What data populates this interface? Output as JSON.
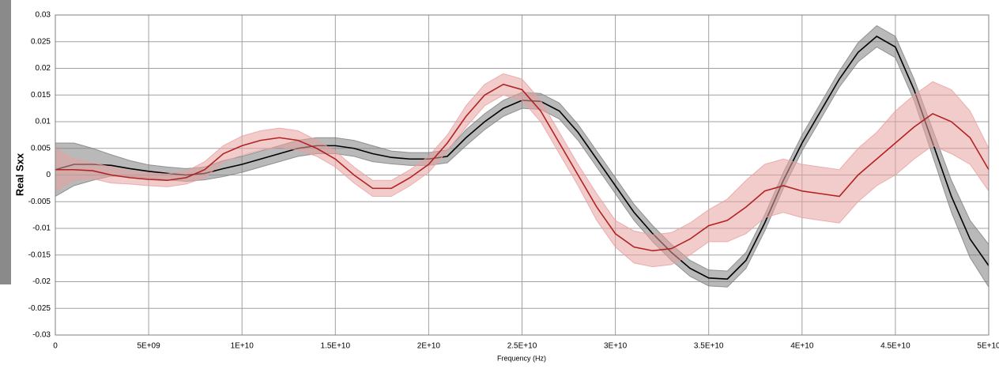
{
  "chart_data": {
    "type": "line",
    "x_label": "Frequency (Hz)",
    "y_label": "Real Sxx",
    "x": [
      0,
      1000000000.0,
      2000000000.0,
      3000000000.0,
      4000000000.0,
      5000000000.0,
      6000000000.0,
      7000000000.0,
      8000000000.0,
      9000000000.0,
      10000000000.0,
      11000000000.0,
      12000000000.0,
      13000000000.0,
      14000000000.0,
      15000000000.0,
      16000000000.0,
      17000000000.0,
      18000000000.0,
      19000000000.0,
      20000000000.0,
      21000000000.0,
      22000000000.0,
      23000000000.0,
      24000000000.0,
      25000000000.0,
      26000000000.0,
      27000000000.0,
      28000000000.0,
      29000000000.0,
      30000000000.0,
      31000000000.0,
      32000000000.0,
      33000000000.0,
      34000000000.0,
      35000000000.0,
      36000000000.0,
      37000000000.0,
      38000000000.0,
      39000000000.0,
      40000000000.0,
      41000000000.0,
      42000000000.0,
      43000000000.0,
      44000000000.0,
      45000000000.0,
      46000000000.0,
      47000000000.0,
      48000000000.0,
      49000000000.0,
      50000000000.0
    ],
    "series": [
      {
        "color": "#000000",
        "band_color": "#808080",
        "values": [
          0.001,
          0.002,
          0.002,
          0.0018,
          0.0012,
          0.0007,
          0.0003,
          0.0,
          0.0003,
          0.0012,
          0.002,
          0.003,
          0.004,
          0.005,
          0.0055,
          0.0055,
          0.005,
          0.004,
          0.0033,
          0.003,
          0.003,
          0.0035,
          0.007,
          0.01,
          0.0125,
          0.014,
          0.0138,
          0.012,
          0.008,
          0.003,
          -0.002,
          -0.007,
          -0.011,
          -0.0145,
          -0.0175,
          -0.0193,
          -0.0195,
          -0.016,
          -0.009,
          -0.001,
          0.006,
          0.012,
          0.018,
          0.023,
          0.026,
          0.024,
          0.016,
          0.006,
          -0.004,
          -0.012,
          -0.017
        ],
        "error": [
          0.005,
          0.004,
          0.003,
          0.002,
          0.0015,
          0.0012,
          0.0012,
          0.0012,
          0.0012,
          0.0015,
          0.0015,
          0.0015,
          0.0015,
          0.0015,
          0.0015,
          0.0015,
          0.0015,
          0.0015,
          0.0012,
          0.0012,
          0.0012,
          0.0012,
          0.0015,
          0.0015,
          0.0015,
          0.0015,
          0.0015,
          0.0015,
          0.0015,
          0.0015,
          0.0015,
          0.0015,
          0.0015,
          0.0015,
          0.0015,
          0.0015,
          0.0015,
          0.0015,
          0.0015,
          0.0015,
          0.0015,
          0.0015,
          0.0015,
          0.0018,
          0.002,
          0.002,
          0.002,
          0.0025,
          0.003,
          0.0035,
          0.004
        ]
      },
      {
        "color": "#b22222",
        "band_color": "#e8a0a0",
        "values": [
          0.001,
          0.001,
          0.0008,
          0.0,
          -0.0005,
          -0.0008,
          -0.001,
          -0.0005,
          0.001,
          0.004,
          0.0055,
          0.0065,
          0.007,
          0.0065,
          0.005,
          0.003,
          0.0,
          -0.0025,
          -0.0025,
          -0.0005,
          0.002,
          0.006,
          0.011,
          0.015,
          0.017,
          0.016,
          0.012,
          0.006,
          0.0,
          -0.006,
          -0.011,
          -0.0135,
          -0.0142,
          -0.0138,
          -0.012,
          -0.0095,
          -0.0085,
          -0.006,
          -0.003,
          -0.002,
          -0.003,
          -0.0035,
          -0.004,
          0.0,
          0.003,
          0.006,
          0.009,
          0.0115,
          0.01,
          0.007,
          0.001
        ],
        "error": [
          0.004,
          0.002,
          0.0015,
          0.0015,
          0.0012,
          0.0012,
          0.0012,
          0.0012,
          0.0015,
          0.0015,
          0.0018,
          0.0018,
          0.0018,
          0.0018,
          0.0015,
          0.0015,
          0.0015,
          0.0015,
          0.0015,
          0.0015,
          0.0015,
          0.0015,
          0.002,
          0.002,
          0.002,
          0.002,
          0.002,
          0.002,
          0.002,
          0.0025,
          0.0025,
          0.003,
          0.003,
          0.003,
          0.003,
          0.003,
          0.004,
          0.005,
          0.005,
          0.005,
          0.005,
          0.005,
          0.005,
          0.005,
          0.005,
          0.006,
          0.006,
          0.006,
          0.006,
          0.005,
          0.004
        ]
      }
    ],
    "xlim": [
      0,
      50000000000.0
    ],
    "xticks": [
      0,
      {
        "value": 5000000000.0,
        "label": "5E+09"
      },
      {
        "value": 10000000000.0,
        "label": "1E+10"
      },
      {
        "value": 15000000000.0,
        "label": "1.5E+10"
      },
      {
        "value": 20000000000.0,
        "label": "2E+10"
      },
      {
        "value": 25000000000.0,
        "label": "2.5E+10"
      },
      {
        "value": 30000000000.0,
        "label": "3E+10"
      },
      {
        "value": 35000000000.0,
        "label": "3.5E+10"
      },
      {
        "value": 40000000000.0,
        "label": "4E+10"
      },
      {
        "value": 45000000000.0,
        "label": "4.5E+10"
      },
      {
        "value": 50000000000.0,
        "label": "5E+10"
      }
    ],
    "ylim": [
      -0.03,
      0.03
    ],
    "yticks": [
      -0.03,
      -0.025,
      -0.02,
      -0.015,
      -0.01,
      -0.005,
      0,
      0.005,
      0.01,
      0.015,
      0.02,
      0.025,
      0.03
    ],
    "grid": true
  }
}
